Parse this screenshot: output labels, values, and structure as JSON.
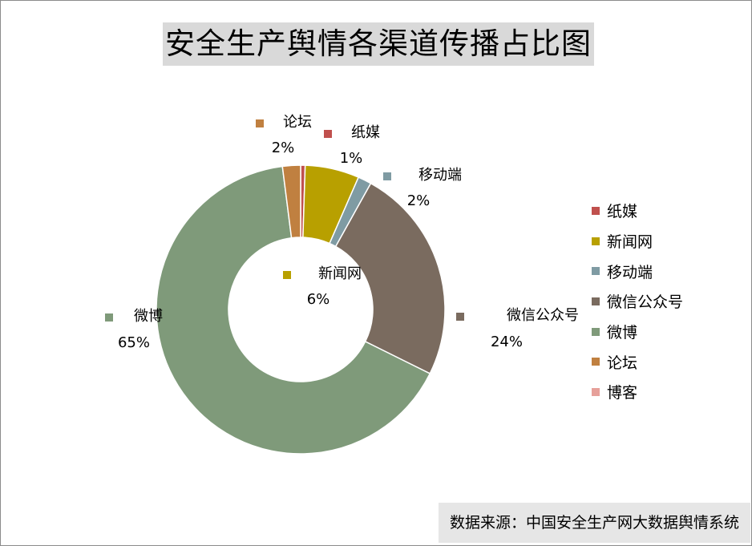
{
  "chart_data": {
    "type": "pie",
    "title": "安全生产舆情各渠道传播占比图",
    "categories": [
      "纸媒",
      "新闻网",
      "移动端",
      "微信公众号",
      "微博",
      "论坛",
      "博客"
    ],
    "values": [
      0.5,
      6,
      1.5,
      24,
      65,
      2,
      0
    ],
    "value_labels": [
      "1%",
      "6%",
      "2%",
      "24%",
      "65%",
      "2%",
      ""
    ],
    "colors": [
      "#c0504d",
      "#b8a000",
      "#7f9ba3",
      "#7a6b5f",
      "#7f9a7a",
      "#c08040",
      "#e6a09a"
    ],
    "style": "donut",
    "legend_position": "right",
    "source_note": "数据来源：中国安全生产网大数据舆情系统"
  }
}
